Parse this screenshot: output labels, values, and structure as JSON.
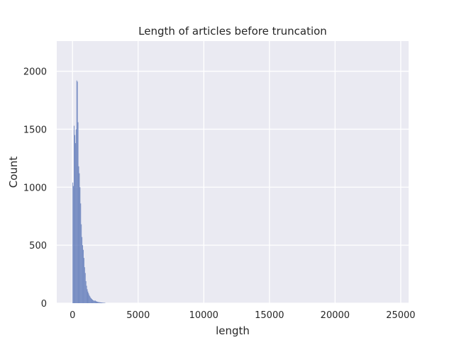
{
  "chart_data": {
    "type": "bar",
    "title": "Length of articles before truncation",
    "xlabel": "length",
    "ylabel": "Count",
    "xlim": [
      -1200,
      25600
    ],
    "ylim": [
      0,
      2260
    ],
    "xticks": [
      0,
      5000,
      10000,
      15000,
      20000,
      25000
    ],
    "yticks": [
      0,
      500,
      1000,
      1500,
      2000
    ],
    "grid": true,
    "bin_width": 50,
    "series": [
      {
        "bin_starts": [
          0,
          50,
          100,
          150,
          200,
          250,
          300,
          350,
          400,
          450,
          500,
          550,
          600,
          650,
          700,
          750,
          800,
          850,
          900,
          950,
          1000,
          1050,
          1100,
          1150,
          1200,
          1250,
          1300,
          1350,
          1400,
          1450,
          1500,
          1550,
          1600,
          1650,
          1700,
          1750,
          1800,
          1850,
          1900,
          1950,
          2000,
          2050,
          2100,
          2150,
          2200,
          2250,
          2300,
          2350,
          2400,
          2450
        ],
        "values": [
          1040,
          1010,
          1530,
          1450,
          1380,
          1500,
          1920,
          1910,
          1560,
          1180,
          1120,
          1000,
          860,
          680,
          570,
          500,
          460,
          390,
          310,
          260,
          190,
          150,
          120,
          100,
          85,
          70,
          60,
          50,
          42,
          36,
          30,
          25,
          22,
          20,
          24,
          18,
          15,
          13,
          12,
          10,
          9,
          8,
          7,
          6,
          6,
          5,
          4,
          4,
          3,
          3
        ]
      }
    ]
  }
}
